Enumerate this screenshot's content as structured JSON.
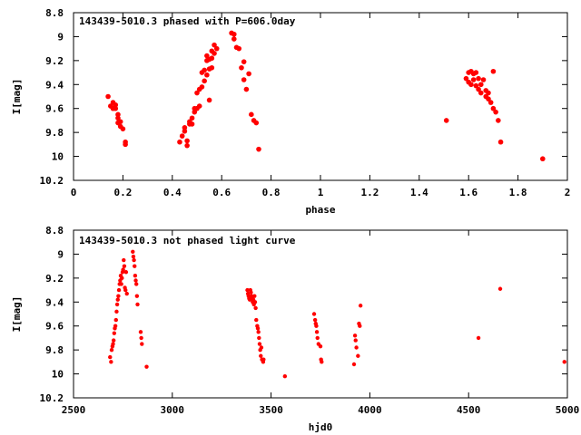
{
  "chart_data": [
    {
      "type": "scatter",
      "title": "143439-5010.3 phased with P=606.0day",
      "xlabel": "phase",
      "ylabel": "I[mag]",
      "xlim": [
        0,
        2
      ],
      "ylim": [
        10.2,
        8.8
      ],
      "y_inverted": true,
      "xticks": [
        "0",
        "0.2",
        "0.4",
        "0.6",
        "0.8",
        "1",
        "1.2",
        "1.4",
        "1.6",
        "1.8",
        "2"
      ],
      "yticks": [
        "8.8",
        "9",
        "9.2",
        "9.4",
        "9.6",
        "9.8",
        "10",
        "10.2"
      ],
      "grid": false,
      "marker_color": "#ff0000",
      "series": [
        {
          "x": [
            0.14,
            0.15,
            0.16,
            0.16,
            0.17,
            0.17,
            0.18,
            0.18,
            0.18,
            0.19,
            0.19,
            0.2,
            0.21,
            0.21,
            0.43,
            0.44,
            0.45,
            0.45,
            0.46,
            0.46,
            0.47,
            0.47,
            0.48,
            0.48,
            0.49,
            0.49,
            0.5,
            0.5,
            0.51,
            0.51,
            0.52,
            0.52,
            0.53,
            0.53,
            0.54,
            0.54,
            0.54,
            0.55,
            0.55,
            0.55,
            0.56,
            0.56,
            0.56,
            0.57,
            0.57,
            0.58,
            0.64,
            0.65,
            0.65,
            0.66,
            0.67,
            0.68,
            0.69,
            0.69,
            0.7,
            0.71,
            0.72,
            0.73,
            0.74,
            0.75,
            1.51,
            1.59,
            1.6,
            1.6,
            1.61,
            1.61,
            1.62,
            1.62,
            1.63,
            1.63,
            1.64,
            1.64,
            1.65,
            1.65,
            1.66,
            1.67,
            1.67,
            1.68,
            1.68,
            1.69,
            1.7,
            1.7,
            1.71,
            1.72,
            1.73,
            1.9
          ],
          "y": [
            9.5,
            9.58,
            9.55,
            9.6,
            9.6,
            9.57,
            9.68,
            9.72,
            9.65,
            9.75,
            9.71,
            9.77,
            9.88,
            9.9,
            9.88,
            9.83,
            9.79,
            9.76,
            9.91,
            9.87,
            9.73,
            9.71,
            9.73,
            9.68,
            9.63,
            9.6,
            9.6,
            9.47,
            9.58,
            9.44,
            9.42,
            9.3,
            9.28,
            9.37,
            9.2,
            9.32,
            9.16,
            9.27,
            9.19,
            9.53,
            9.12,
            9.26,
            9.18,
            9.07,
            9.14,
            9.1,
            8.97,
            9.02,
            8.98,
            9.09,
            9.1,
            9.26,
            9.21,
            9.36,
            9.44,
            9.31,
            9.65,
            9.7,
            9.72,
            9.94,
            9.7,
            9.35,
            9.3,
            9.38,
            9.29,
            9.4,
            9.31,
            9.36,
            9.3,
            9.41,
            9.35,
            9.44,
            9.4,
            9.47,
            9.36,
            9.45,
            9.5,
            9.47,
            9.52,
            9.55,
            9.29,
            9.6,
            9.63,
            9.7,
            9.88,
            10.02
          ]
        }
      ]
    },
    {
      "type": "scatter",
      "title": "143439-5010.3 not phased light curve",
      "xlabel": "hjd0",
      "ylabel": "I[mag]",
      "xlim": [
        2500,
        5000
      ],
      "ylim": [
        10.2,
        8.8
      ],
      "y_inverted": true,
      "xticks": [
        "2500",
        "3000",
        "3500",
        "4000",
        "4500",
        "5000"
      ],
      "yticks": [
        "8.8",
        "9",
        "9.2",
        "9.4",
        "9.6",
        "9.8",
        "10",
        "10.2"
      ],
      "grid": false,
      "marker_color": "#ff0000",
      "series": [
        {
          "x": [
            2685,
            2690,
            2693,
            2697,
            2700,
            2703,
            2706,
            2709,
            2712,
            2715,
            2718,
            2721,
            2724,
            2727,
            2730,
            2733,
            2736,
            2739,
            2742,
            2745,
            2748,
            2751,
            2754,
            2757,
            2760,
            2763,
            2766,
            2770,
            2800,
            2803,
            2806,
            2809,
            2812,
            2815,
            2818,
            2821,
            2824,
            2840,
            2843,
            2846,
            2870,
            3380,
            3383,
            3386,
            3389,
            3392,
            3395,
            3398,
            3401,
            3404,
            3407,
            3410,
            3413,
            3416,
            3419,
            3422,
            3425,
            3430,
            3433,
            3436,
            3439,
            3442,
            3445,
            3448,
            3451,
            3454,
            3460,
            3462,
            3570,
            3718,
            3723,
            3726,
            3729,
            3732,
            3735,
            3740,
            3750,
            3753,
            3756,
            3920,
            3925,
            3928,
            3932,
            3940,
            3945,
            3949,
            3953,
            4550,
            4660,
            4985
          ],
          "y": [
            9.86,
            9.9,
            9.8,
            9.77,
            9.75,
            9.72,
            9.66,
            9.62,
            9.6,
            9.55,
            9.48,
            9.42,
            9.38,
            9.35,
            9.3,
            9.25,
            9.22,
            9.18,
            9.25,
            9.2,
            9.15,
            9.13,
            9.05,
            9.1,
            9.28,
            9.3,
            9.15,
            9.33,
            8.98,
            9.02,
            9.05,
            9.1,
            9.18,
            9.22,
            9.25,
            9.35,
            9.42,
            9.65,
            9.7,
            9.75,
            9.94,
            9.3,
            9.33,
            9.35,
            9.37,
            9.38,
            9.3,
            9.32,
            9.35,
            9.37,
            9.4,
            9.38,
            9.42,
            9.35,
            9.4,
            9.45,
            9.55,
            9.6,
            9.62,
            9.65,
            9.7,
            9.75,
            9.8,
            9.85,
            9.78,
            9.88,
            9.9,
            9.88,
            10.02,
            9.5,
            9.55,
            9.58,
            9.6,
            9.65,
            9.7,
            9.75,
            9.77,
            9.88,
            9.9,
            9.92,
            9.68,
            9.72,
            9.78,
            9.85,
            9.58,
            9.6,
            9.43,
            9.7,
            9.29,
            9.9
          ]
        }
      ]
    }
  ]
}
